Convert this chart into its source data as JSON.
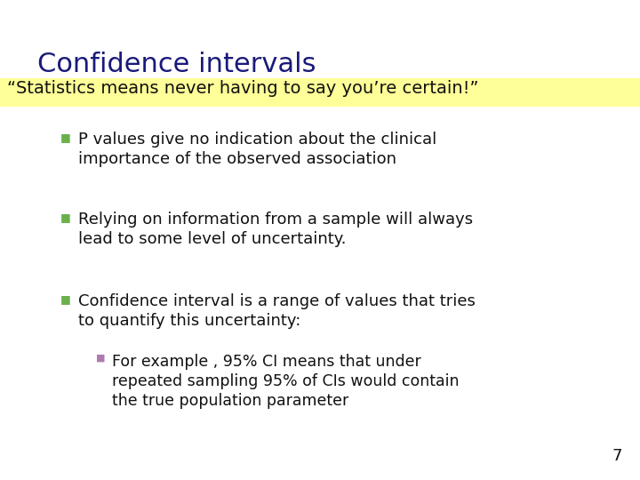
{
  "title": "Confidence intervals",
  "title_color": "#1a1a7a",
  "subtitle": "“Statistics means never having to say you’re certain!”",
  "subtitle_bg": "#ffff99",
  "subtitle_color": "#111111",
  "bg_color": "#ffffff",
  "bullet_color": "#6ab04c",
  "sub_bullet_color": "#b07ab0",
  "text_color": "#111111",
  "page_number": "7",
  "title_fontsize": 22,
  "subtitle_fontsize": 14,
  "bullet_fontsize": 13,
  "subbullet_fontsize": 12.5,
  "bullets": [
    {
      "text": "P values give no indication about the clinical\nimportance of the observed association",
      "level": 1
    },
    {
      "text": "Relying on information from a sample will always\nlead to some level of uncertainty.",
      "level": 1
    },
    {
      "text": "Confidence interval is a range of values that tries\nto quantify this uncertainty:",
      "level": 1
    },
    {
      "text": "For example , 95% CI means that under\nrepeated sampling 95% of CIs would contain\nthe true population parameter",
      "level": 2
    }
  ]
}
